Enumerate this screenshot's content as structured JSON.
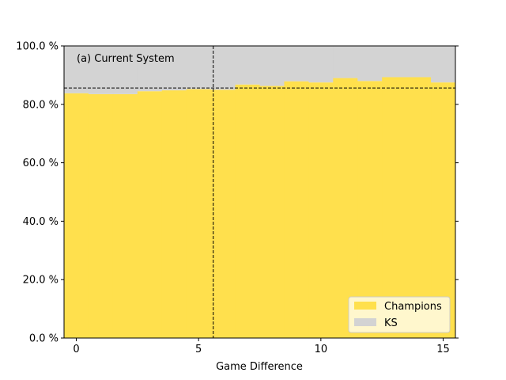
{
  "chart_data": {
    "type": "area",
    "title": "",
    "annotation": "(a) Current System",
    "xlabel": "Game Difference",
    "ylabel": "",
    "xlim": [
      -0.5,
      15.5
    ],
    "ylim": [
      0,
      100
    ],
    "x_ticks": [
      0,
      5,
      10,
      15
    ],
    "y_ticks": [
      0,
      20,
      40,
      60,
      80,
      100
    ],
    "y_tick_labels": [
      "0.0 %",
      "20.0 %",
      "40.0 %",
      "60.0 %",
      "80.0 %",
      "100.0 %"
    ],
    "x": [
      0,
      1,
      2,
      3,
      4,
      5,
      6,
      7,
      8,
      9,
      10,
      11,
      12,
      13,
      14,
      15
    ],
    "series": [
      {
        "name": "Champions",
        "color": "#FFE04D",
        "values": [
          83.8,
          83.5,
          83.5,
          84.5,
          84.8,
          85.2,
          85.0,
          86.8,
          86.3,
          87.9,
          87.5,
          89.0,
          88.0,
          89.3,
          89.3,
          87.5
        ]
      },
      {
        "name": "KS",
        "color": "#D3D3D3",
        "values": [
          16.2,
          16.5,
          16.5,
          15.5,
          15.2,
          14.8,
          15.0,
          13.2,
          13.7,
          12.1,
          12.5,
          11.0,
          12.0,
          10.7,
          10.7,
          12.5
        ]
      }
    ],
    "reference_lines": {
      "vertical_x": 5.6,
      "horizontal_y": 85.6
    },
    "legend_position": "lower right",
    "grid": false
  }
}
